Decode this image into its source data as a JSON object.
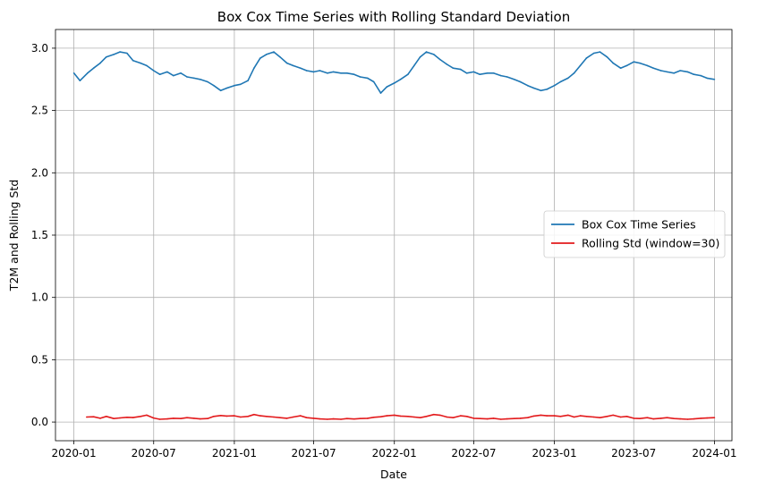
{
  "chart_data": {
    "type": "line",
    "title": "Box Cox Time Series with Rolling Standard Deviation",
    "xlabel": "Date",
    "ylabel": "T2M and Rolling Std",
    "x_range": [
      "2019-11-20",
      "2024-02-10"
    ],
    "ylim": [
      -0.15,
      3.15
    ],
    "x_ticks": [
      "2020-01",
      "2020-07",
      "2021-01",
      "2021-07",
      "2022-01",
      "2022-07",
      "2023-01",
      "2023-07",
      "2024-01"
    ],
    "y_ticks": [
      0.0,
      0.5,
      1.0,
      1.5,
      2.0,
      2.5,
      3.0
    ],
    "y_tick_labels": [
      "0.0",
      "0.5",
      "1.0",
      "1.5",
      "2.0",
      "2.5",
      "3.0"
    ],
    "grid": true,
    "legend_position": "center-right",
    "series": [
      {
        "name": "Box Cox Time Series",
        "color": "#1f77b4",
        "x": [
          "2020-01-01",
          "2020-01-15",
          "2020-02-01",
          "2020-02-15",
          "2020-03-01",
          "2020-03-15",
          "2020-04-01",
          "2020-04-15",
          "2020-05-01",
          "2020-05-15",
          "2020-06-01",
          "2020-06-15",
          "2020-07-01",
          "2020-07-15",
          "2020-08-01",
          "2020-08-15",
          "2020-09-01",
          "2020-09-15",
          "2020-10-01",
          "2020-10-15",
          "2020-11-01",
          "2020-11-15",
          "2020-12-01",
          "2020-12-15",
          "2021-01-01",
          "2021-01-15",
          "2021-02-01",
          "2021-02-15",
          "2021-03-01",
          "2021-03-15",
          "2021-04-01",
          "2021-04-15",
          "2021-05-01",
          "2021-05-15",
          "2021-06-01",
          "2021-06-15",
          "2021-07-01",
          "2021-07-15",
          "2021-08-01",
          "2021-08-15",
          "2021-09-01",
          "2021-09-15",
          "2021-10-01",
          "2021-10-15",
          "2021-11-01",
          "2021-11-15",
          "2021-12-01",
          "2021-12-15",
          "2022-01-01",
          "2022-01-15",
          "2022-02-01",
          "2022-02-15",
          "2022-03-01",
          "2022-03-15",
          "2022-04-01",
          "2022-04-15",
          "2022-05-01",
          "2022-05-15",
          "2022-06-01",
          "2022-06-15",
          "2022-07-01",
          "2022-07-15",
          "2022-08-01",
          "2022-08-15",
          "2022-09-01",
          "2022-09-15",
          "2022-10-01",
          "2022-10-15",
          "2022-11-01",
          "2022-11-15",
          "2022-12-01",
          "2022-12-15",
          "2023-01-01",
          "2023-01-15",
          "2023-02-01",
          "2023-02-15",
          "2023-03-01",
          "2023-03-15",
          "2023-04-01",
          "2023-04-15",
          "2023-05-01",
          "2023-05-15",
          "2023-06-01",
          "2023-06-15",
          "2023-07-01",
          "2023-07-15",
          "2023-08-01",
          "2023-08-15",
          "2023-09-01",
          "2023-09-15",
          "2023-10-01",
          "2023-10-15",
          "2023-11-01",
          "2023-11-15",
          "2023-12-01",
          "2023-12-15",
          "2024-01-01"
        ],
        "values": [
          2.8,
          2.74,
          2.8,
          2.84,
          2.88,
          2.93,
          2.95,
          2.97,
          2.96,
          2.9,
          2.88,
          2.86,
          2.82,
          2.79,
          2.81,
          2.78,
          2.8,
          2.77,
          2.76,
          2.75,
          2.73,
          2.7,
          2.66,
          2.68,
          2.7,
          2.71,
          2.74,
          2.84,
          2.92,
          2.95,
          2.97,
          2.93,
          2.88,
          2.86,
          2.84,
          2.82,
          2.81,
          2.82,
          2.8,
          2.81,
          2.8,
          2.8,
          2.79,
          2.77,
          2.76,
          2.73,
          2.64,
          2.69,
          2.72,
          2.75,
          2.79,
          2.86,
          2.93,
          2.97,
          2.95,
          2.91,
          2.87,
          2.84,
          2.83,
          2.8,
          2.81,
          2.79,
          2.8,
          2.8,
          2.78,
          2.77,
          2.75,
          2.73,
          2.7,
          2.68,
          2.66,
          2.67,
          2.7,
          2.73,
          2.76,
          2.8,
          2.86,
          2.92,
          2.96,
          2.97,
          2.93,
          2.88,
          2.84,
          2.86,
          2.89,
          2.88,
          2.86,
          2.84,
          2.82,
          2.81,
          2.8,
          2.82,
          2.81,
          2.79,
          2.78,
          2.76,
          2.75
        ]
      },
      {
        "name": "Rolling Std (window=30)",
        "color": "#e31a1c",
        "x": [
          "2020-01-30",
          "2020-02-15",
          "2020-03-01",
          "2020-03-15",
          "2020-04-01",
          "2020-04-15",
          "2020-05-01",
          "2020-05-15",
          "2020-06-01",
          "2020-06-15",
          "2020-07-01",
          "2020-07-15",
          "2020-08-01",
          "2020-08-15",
          "2020-09-01",
          "2020-09-15",
          "2020-10-01",
          "2020-10-15",
          "2020-11-01",
          "2020-11-15",
          "2020-12-01",
          "2020-12-15",
          "2021-01-01",
          "2021-01-15",
          "2021-02-01",
          "2021-02-15",
          "2021-03-01",
          "2021-03-15",
          "2021-04-01",
          "2021-04-15",
          "2021-05-01",
          "2021-05-15",
          "2021-06-01",
          "2021-06-15",
          "2021-07-01",
          "2021-07-15",
          "2021-08-01",
          "2021-08-15",
          "2021-09-01",
          "2021-09-15",
          "2021-10-01",
          "2021-10-15",
          "2021-11-01",
          "2021-11-15",
          "2021-12-01",
          "2021-12-15",
          "2022-01-01",
          "2022-01-15",
          "2022-02-01",
          "2022-02-15",
          "2022-03-01",
          "2022-03-15",
          "2022-04-01",
          "2022-04-15",
          "2022-05-01",
          "2022-05-15",
          "2022-06-01",
          "2022-06-15",
          "2022-07-01",
          "2022-07-15",
          "2022-08-01",
          "2022-08-15",
          "2022-09-01",
          "2022-09-15",
          "2022-10-01",
          "2022-10-15",
          "2022-11-01",
          "2022-11-15",
          "2022-12-01",
          "2022-12-15",
          "2023-01-01",
          "2023-01-15",
          "2023-02-01",
          "2023-02-15",
          "2023-03-01",
          "2023-03-15",
          "2023-04-01",
          "2023-04-15",
          "2023-05-01",
          "2023-05-15",
          "2023-06-01",
          "2023-06-15",
          "2023-07-01",
          "2023-07-15",
          "2023-08-01",
          "2023-08-15",
          "2023-09-01",
          "2023-09-15",
          "2023-10-01",
          "2023-10-15",
          "2023-11-01",
          "2023-11-15",
          "2023-12-01",
          "2023-12-15",
          "2024-01-01"
        ],
        "values": [
          0.04,
          0.042,
          0.03,
          0.045,
          0.028,
          0.033,
          0.038,
          0.036,
          0.045,
          0.055,
          0.032,
          0.022,
          0.025,
          0.03,
          0.028,
          0.035,
          0.03,
          0.025,
          0.028,
          0.045,
          0.052,
          0.048,
          0.05,
          0.04,
          0.045,
          0.06,
          0.05,
          0.045,
          0.04,
          0.035,
          0.03,
          0.04,
          0.05,
          0.035,
          0.03,
          0.025,
          0.022,
          0.025,
          0.022,
          0.028,
          0.024,
          0.028,
          0.03,
          0.038,
          0.042,
          0.05,
          0.055,
          0.048,
          0.045,
          0.04,
          0.035,
          0.045,
          0.06,
          0.055,
          0.04,
          0.035,
          0.05,
          0.045,
          0.03,
          0.028,
          0.025,
          0.03,
          0.022,
          0.025,
          0.028,
          0.03,
          0.035,
          0.048,
          0.055,
          0.05,
          0.05,
          0.045,
          0.055,
          0.04,
          0.05,
          0.045,
          0.04,
          0.035,
          0.045,
          0.055,
          0.04,
          0.045,
          0.03,
          0.028,
          0.035,
          0.025,
          0.03,
          0.035,
          0.028,
          0.025,
          0.022,
          0.025,
          0.03,
          0.032,
          0.035
        ]
      }
    ]
  }
}
